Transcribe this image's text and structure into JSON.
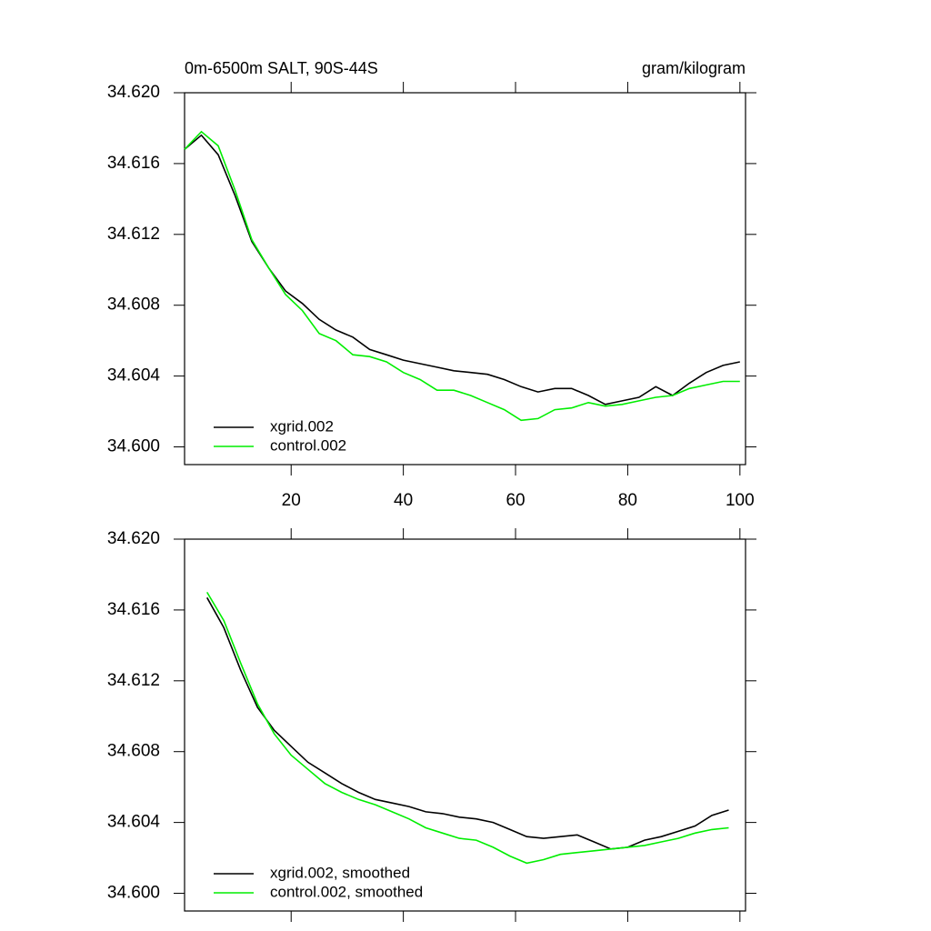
{
  "chart_data": [
    {
      "type": "line",
      "title": "0m-6500m SALT, 90S-44S",
      "units": "gram/kilogram",
      "x": [
        1,
        4,
        7,
        10,
        13,
        16,
        19,
        22,
        25,
        28,
        31,
        34,
        37,
        40,
        43,
        46,
        49,
        52,
        55,
        58,
        61,
        64,
        67,
        70,
        73,
        76,
        79,
        82,
        85,
        88,
        91,
        94,
        97,
        100
      ],
      "series": [
        {
          "name": "xgrid.002",
          "color": "#000000",
          "values": [
            34.6168,
            34.6176,
            34.6165,
            34.6142,
            34.6116,
            34.6101,
            34.6088,
            34.6081,
            34.6072,
            34.6066,
            34.6062,
            34.6055,
            34.6052,
            34.6049,
            34.6047,
            34.6045,
            34.6043,
            34.6042,
            34.6041,
            34.6038,
            34.6034,
            34.6031,
            34.6033,
            34.6033,
            34.6029,
            34.6024,
            34.6026,
            34.6028,
            34.6034,
            34.6029,
            34.6036,
            34.6042,
            34.6046,
            34.6048
          ]
        },
        {
          "name": "control.002",
          "color": "#00ee00",
          "values": [
            34.6168,
            34.6178,
            34.617,
            34.6145,
            34.6117,
            34.6101,
            34.6086,
            34.6077,
            34.6064,
            34.606,
            34.6052,
            34.6051,
            34.6048,
            34.6042,
            34.6038,
            34.6032,
            34.6032,
            34.6029,
            34.6025,
            34.6021,
            34.6015,
            34.6016,
            34.6021,
            34.6022,
            34.6025,
            34.6023,
            34.6024,
            34.6026,
            34.6028,
            34.6029,
            34.6033,
            34.6035,
            34.6037,
            34.6037
          ]
        }
      ],
      "xlim": [
        1,
        101
      ],
      "xticks": [
        20,
        40,
        60,
        80,
        100
      ],
      "show_xtick_labels": true,
      "ylim": [
        34.599,
        34.62
      ],
      "yticks": [
        {
          "value": 34.6,
          "label": "34.600"
        },
        34.604,
        34.608,
        34.612,
        34.616,
        {
          "value": 34.62,
          "label": "34.620"
        }
      ],
      "legend": "bottom-left"
    },
    {
      "type": "line",
      "x": [
        5,
        8,
        11,
        14,
        17,
        20,
        23,
        26,
        29,
        32,
        35,
        38,
        41,
        44,
        47,
        50,
        53,
        56,
        59,
        62,
        65,
        68,
        71,
        74,
        77,
        80,
        83,
        86,
        89,
        92,
        95,
        98
      ],
      "series": [
        {
          "name": "xgrid.002, smoothed",
          "color": "#000000",
          "values": [
            34.6167,
            34.615,
            34.6126,
            34.6105,
            34.6092,
            34.6083,
            34.6074,
            34.6068,
            34.6062,
            34.6057,
            34.6053,
            34.6051,
            34.6049,
            34.6046,
            34.6045,
            34.6043,
            34.6042,
            34.604,
            34.6036,
            34.6032,
            34.6031,
            34.6032,
            34.6033,
            34.6029,
            34.6025,
            34.6026,
            34.603,
            34.6032,
            34.6035,
            34.6038,
            34.6044,
            34.6047
          ]
        },
        {
          "name": "control.002, smoothed",
          "color": "#00ee00",
          "values": [
            34.617,
            34.6154,
            34.613,
            34.6107,
            34.609,
            34.6078,
            34.607,
            34.6062,
            34.6057,
            34.6053,
            34.605,
            34.6046,
            34.6042,
            34.6037,
            34.6034,
            34.6031,
            34.603,
            34.6026,
            34.6021,
            34.6017,
            34.6019,
            34.6022,
            34.6023,
            34.6024,
            34.6025,
            34.6026,
            34.6027,
            34.6029,
            34.6031,
            34.6034,
            34.6036,
            34.6037
          ]
        }
      ],
      "xlim": [
        1,
        101
      ],
      "xticks": [
        20,
        40,
        60,
        80,
        100
      ],
      "show_xtick_labels": false,
      "ylim": [
        34.599,
        34.62
      ],
      "yticks": [
        {
          "value": 34.6,
          "label": "34.600"
        },
        34.604,
        34.608,
        34.612,
        34.616,
        {
          "value": 34.62,
          "label": "34.620"
        }
      ],
      "legend": "bottom-left"
    }
  ]
}
